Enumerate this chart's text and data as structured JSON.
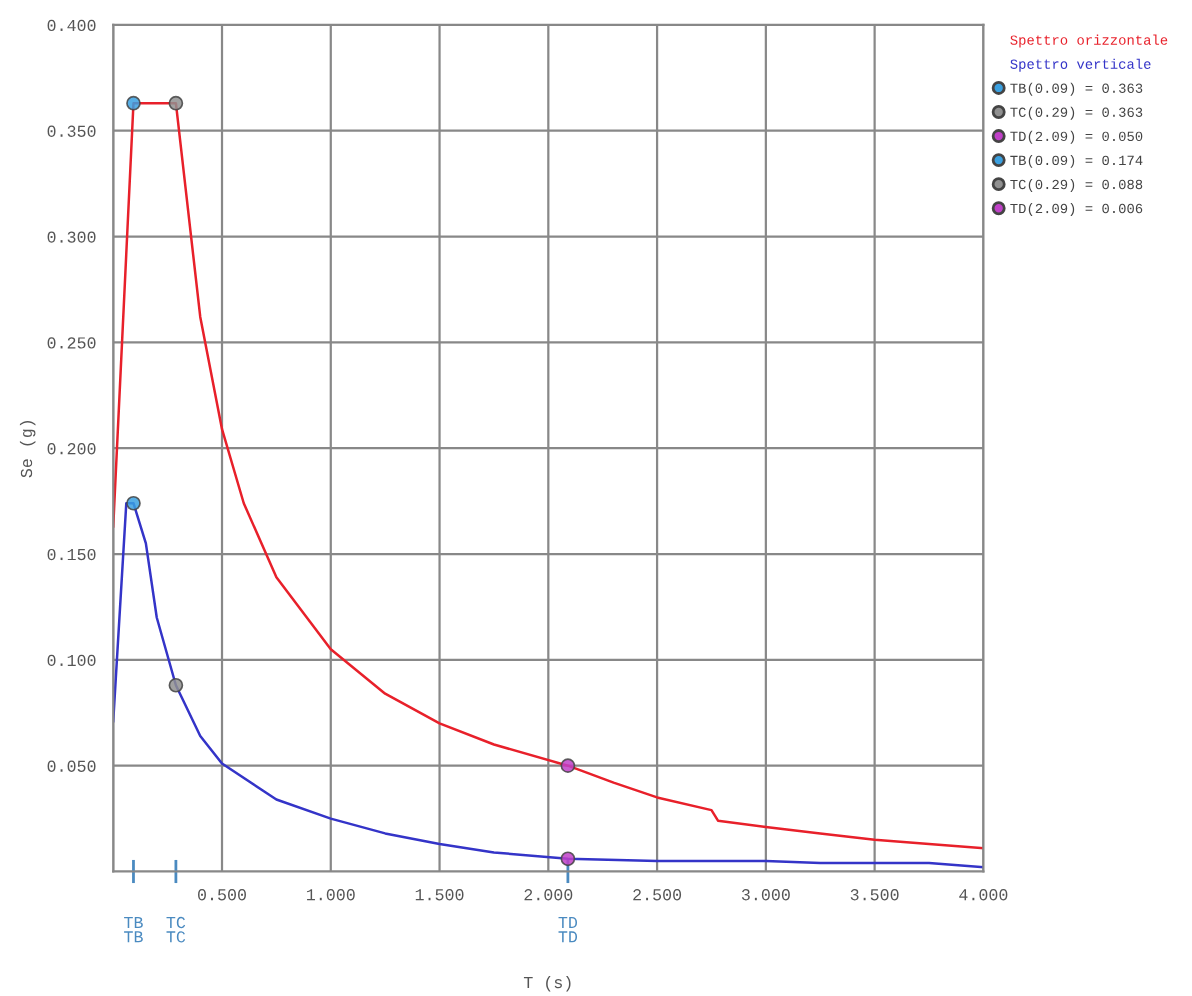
{
  "chart_data": {
    "type": "line",
    "xlabel": "T (s)",
    "ylabel": "Se (g)",
    "xlim": [
      0,
      4.0
    ],
    "ylim": [
      0,
      0.4
    ],
    "annotations": [
      "TB\nTB",
      "TC\nTC",
      "TD\nTD"
    ],
    "xticks": [
      {
        "value": 0,
        "label": null
      },
      {
        "value": 0.5,
        "label": "0.500"
      },
      {
        "value": 1,
        "label": "1.000"
      },
      {
        "value": 1.5,
        "label": "1.500"
      },
      {
        "value": 2,
        "label": "2.000"
      },
      {
        "value": 2.5,
        "label": "2.500"
      },
      {
        "value": 3,
        "label": "3.000"
      },
      {
        "value": 3.5,
        "label": "3.500"
      },
      {
        "value": 4,
        "label": "4.000"
      }
    ],
    "yticks": [
      {
        "value": 0,
        "label": null
      },
      {
        "value": 0.05,
        "label": "0.050"
      },
      {
        "value": 0.1,
        "label": "0.100"
      },
      {
        "value": 0.15,
        "label": "0.150"
      },
      {
        "value": 0.2,
        "label": "0.200"
      },
      {
        "value": 0.25,
        "label": "0.250"
      },
      {
        "value": 0.3,
        "label": "0.300"
      },
      {
        "value": 0.35,
        "label": "0.350"
      },
      {
        "value": 0.4,
        "label": "0.400"
      }
    ],
    "grid": true,
    "legend": "top right",
    "line_style": "solid",
    "series": [
      {
        "name": "Spettro orizzontale",
        "color": "#e8202a",
        "x": [
          0,
          0.093,
          0.288,
          0.4,
          0.5,
          0.6,
          0.75,
          1.0,
          1.25,
          1.5,
          1.75,
          2.09,
          2.3,
          2.5,
          2.75,
          2.78,
          3.0,
          3.25,
          3.5,
          3.75,
          4.0
        ],
        "values": [
          0.163,
          0.363,
          0.363,
          0.262,
          0.209,
          0.174,
          0.139,
          0.105,
          0.084,
          0.07,
          0.06,
          0.05,
          0.042,
          0.035,
          0.029,
          0.024,
          0.021,
          0.018,
          0.015,
          0.013,
          0.011
        ]
      },
      {
        "name": "Spettro verticale",
        "color": "#3434c8",
        "x": [
          0,
          0.06,
          0.093,
          0.15,
          0.2,
          0.288,
          0.4,
          0.5,
          0.75,
          1.0,
          1.25,
          1.5,
          1.75,
          2.09,
          2.5,
          3.0,
          3.25,
          3.5,
          3.75,
          4.0
        ],
        "values": [
          0.071,
          0.174,
          0.174,
          0.155,
          0.12,
          0.088,
          0.064,
          0.051,
          0.034,
          0.025,
          0.018,
          0.013,
          0.009,
          0.006,
          0.005,
          0.005,
          0.004,
          0.004,
          0.004,
          0.002
        ]
      },
      {
        "type": "scatter",
        "name": "TB(0.09) = 0.363",
        "color": "#3aa0e0",
        "x": [
          0.093
        ],
        "values": [
          0.363
        ]
      },
      {
        "type": "scatter",
        "name": "TC(0.29) = 0.363",
        "color": "#909090",
        "x": [
          0.288
        ],
        "values": [
          0.363
        ]
      },
      {
        "type": "scatter",
        "name": "TD(2.09) = 0.050",
        "color": "#c040c8",
        "x": [
          2.09
        ],
        "values": [
          0.05
        ]
      },
      {
        "type": "scatter",
        "name": "TB(0.09) = 0.174",
        "color": "#3aa0e0",
        "x": [
          0.093
        ],
        "values": [
          0.174
        ]
      },
      {
        "type": "scatter",
        "name": "TC(0.29) = 0.088",
        "color": "#909090",
        "x": [
          0.288
        ],
        "values": [
          0.088
        ]
      },
      {
        "type": "scatter",
        "name": "TD(2.09) = 0.006",
        "color": "#c040c8",
        "x": [
          2.09
        ],
        "values": [
          0.006
        ]
      }
    ]
  }
}
